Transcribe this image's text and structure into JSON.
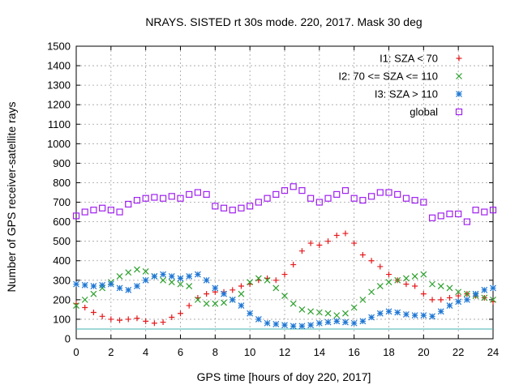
{
  "chart_data": {
    "type": "scatter",
    "title": "NRAYS. SISTED rt 30s mode. 220, 2017. Mask 30 deg",
    "xlabel": "GPS time [hours of doy 220, 2017]",
    "ylabel": "Number of GPS receiver-satellite rays",
    "xlim": [
      0,
      24
    ],
    "ylim": [
      0,
      1500
    ],
    "x_ticks": [
      "0",
      "2",
      "4",
      "6",
      "8",
      "10",
      "12",
      "14",
      "16",
      "18",
      "20",
      "22",
      "24"
    ],
    "y_ticks": [
      "0",
      "100",
      "200",
      "300",
      "400",
      "500",
      "600",
      "700",
      "800",
      "900",
      "1000",
      "1100",
      "1200",
      "1300",
      "1400",
      "1500"
    ],
    "grid": true,
    "legend_position": "top-right",
    "threshold_line": {
      "y": 50,
      "color": "#40b0b0"
    },
    "series": [
      {
        "name": "I1: SZA < 70",
        "marker": "+",
        "color": "#e41a1c",
        "x": [
          0,
          0.5,
          1,
          1.5,
          2,
          2.5,
          3,
          3.5,
          4,
          4.5,
          5,
          5.5,
          6,
          6.5,
          7,
          7.5,
          8,
          8.5,
          9,
          9.5,
          10,
          10.5,
          11,
          11.5,
          12,
          12.5,
          13,
          13.5,
          14,
          14.5,
          15,
          15.5,
          16,
          16.5,
          17,
          17.5,
          18,
          18.5,
          19,
          19.5,
          20,
          20.5,
          21,
          21.5,
          22,
          22.5,
          23,
          23.5,
          24
        ],
        "y": [
          180,
          160,
          135,
          115,
          100,
          95,
          100,
          105,
          90,
          80,
          85,
          110,
          130,
          170,
          210,
          230,
          240,
          240,
          250,
          270,
          280,
          300,
          310,
          300,
          330,
          380,
          450,
          490,
          480,
          500,
          530,
          540,
          490,
          430,
          400,
          370,
          330,
          300,
          280,
          270,
          230,
          200,
          200,
          210,
          220,
          230,
          220,
          210,
          190
        ]
      },
      {
        "name": "I2: 70 <= SZA <= 110",
        "marker": "x",
        "color": "#2ca02c",
        "x": [
          0,
          0.5,
          1,
          1.5,
          2,
          2.5,
          3,
          3.5,
          4,
          4.5,
          5,
          5.5,
          6,
          6.5,
          7,
          7.5,
          8,
          8.5,
          9,
          9.5,
          10,
          10.5,
          11,
          11.5,
          12,
          12.5,
          13,
          13.5,
          14,
          14.5,
          15,
          15.5,
          16,
          16.5,
          17,
          17.5,
          18,
          18.5,
          19,
          19.5,
          20,
          20.5,
          21,
          21.5,
          22,
          22.5,
          23,
          23.5,
          24
        ],
        "y": [
          170,
          200,
          230,
          260,
          290,
          320,
          340,
          355,
          345,
          320,
          300,
          290,
          280,
          270,
          200,
          180,
          180,
          185,
          200,
          230,
          290,
          310,
          300,
          260,
          220,
          180,
          150,
          140,
          135,
          130,
          120,
          130,
          160,
          200,
          240,
          270,
          290,
          300,
          310,
          320,
          330,
          280,
          270,
          260,
          240,
          230,
          220,
          210,
          200
        ]
      },
      {
        "name": "I3: SZA > 110",
        "marker": "*",
        "color": "#1f77d4",
        "x": [
          0,
          0.5,
          1,
          1.5,
          2,
          2.5,
          3,
          3.5,
          4,
          4.5,
          5,
          5.5,
          6,
          6.5,
          7,
          7.5,
          8,
          8.5,
          9,
          9.5,
          10,
          10.5,
          11,
          11.5,
          12,
          12.5,
          13,
          13.5,
          14,
          14.5,
          15,
          15.5,
          16,
          16.5,
          17,
          17.5,
          18,
          18.5,
          19,
          19.5,
          20,
          20.5,
          21,
          21.5,
          22,
          22.5,
          23,
          23.5,
          24
        ],
        "y": [
          280,
          275,
          270,
          275,
          280,
          260,
          250,
          270,
          300,
          320,
          330,
          320,
          310,
          320,
          330,
          300,
          260,
          230,
          200,
          170,
          130,
          100,
          80,
          75,
          70,
          65,
          65,
          70,
          80,
          85,
          90,
          85,
          80,
          90,
          110,
          130,
          140,
          135,
          125,
          120,
          120,
          115,
          140,
          170,
          190,
          200,
          230,
          250,
          260
        ]
      },
      {
        "name": "global",
        "marker": "square",
        "color": "#a020f0",
        "x": [
          0,
          0.5,
          1,
          1.5,
          2,
          2.5,
          3,
          3.5,
          4,
          4.5,
          5,
          5.5,
          6,
          6.5,
          7,
          7.5,
          8,
          8.5,
          9,
          9.5,
          10,
          10.5,
          11,
          11.5,
          12,
          12.5,
          13,
          13.5,
          14,
          14.5,
          15,
          15.5,
          16,
          16.5,
          17,
          17.5,
          18,
          18.5,
          19,
          19.5,
          20,
          20.5,
          21,
          21.5,
          22,
          22.5,
          23,
          23.5,
          24
        ],
        "y": [
          630,
          650,
          660,
          670,
          660,
          650,
          690,
          710,
          720,
          725,
          720,
          730,
          720,
          740,
          750,
          740,
          680,
          670,
          660,
          670,
          680,
          700,
          720,
          740,
          760,
          780,
          760,
          720,
          700,
          720,
          740,
          760,
          720,
          710,
          730,
          750,
          750,
          740,
          720,
          710,
          700,
          620,
          630,
          640,
          640,
          600,
          660,
          650,
          660
        ]
      }
    ]
  }
}
